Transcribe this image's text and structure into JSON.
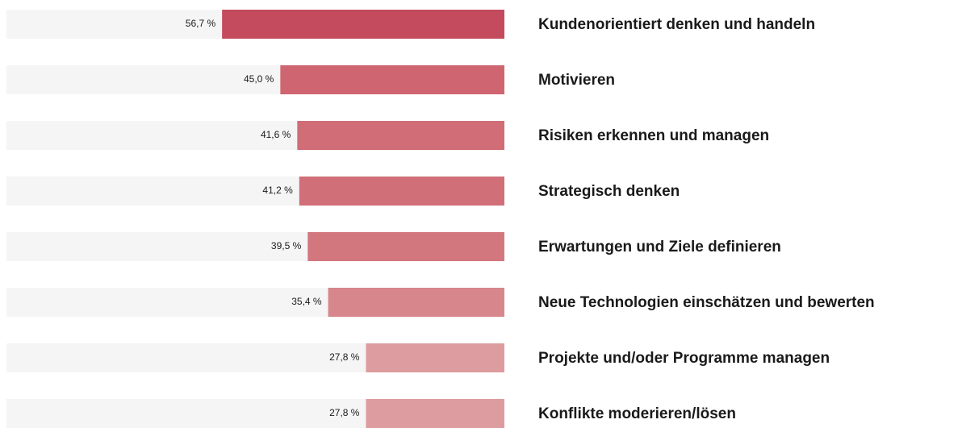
{
  "chart_data": {
    "type": "hbar",
    "categories": [
      "Kundenorientiert denken und handeln",
      "Motivieren",
      "Risiken erkennen und managen",
      "Strategisch denken",
      "Erwartungen und Ziele definieren",
      "Neue Technologien einschätzen und bewerten",
      "Projekte und/oder Programme managen",
      "Konflikte moderieren/lösen"
    ],
    "values": [
      56.7,
      45.0,
      41.6,
      41.2,
      39.5,
      35.4,
      27.8,
      27.8
    ],
    "value_labels": [
      "56,7 %",
      "45,0 %",
      "41,6 %",
      "41,2 %",
      "39,5 %",
      "35,4 %",
      "27,8 %",
      "27,8 %"
    ],
    "colors": [
      "#c44a5e",
      "#cf6570",
      "#d06d76",
      "#d06f78",
      "#d3777f",
      "#d7868c",
      "#dd9c9f",
      "#dd9c9f"
    ],
    "track_color": "#f5f5f5",
    "xlim": [
      0,
      100
    ]
  }
}
